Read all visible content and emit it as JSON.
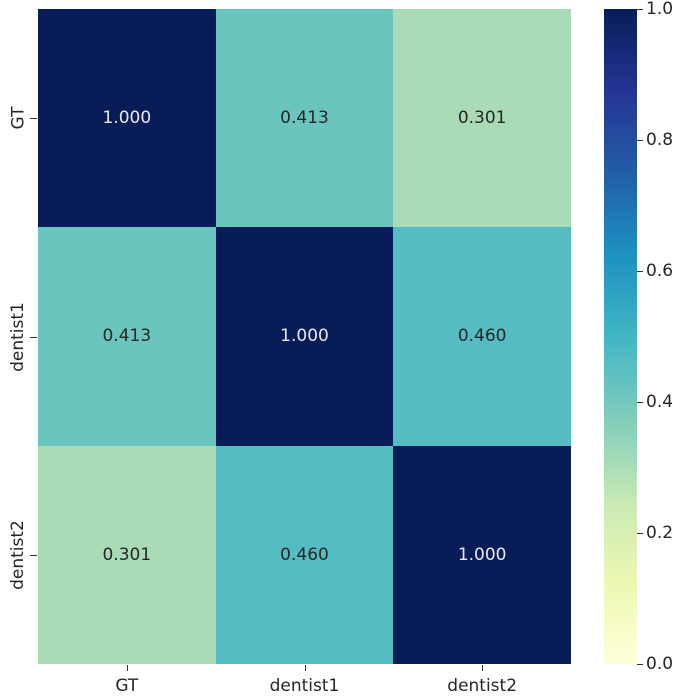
{
  "chart_data": {
    "type": "heatmap",
    "title": "",
    "xlabel": "",
    "ylabel": "",
    "x_categories": [
      "GT",
      "dentist1",
      "dentist2"
    ],
    "y_categories": [
      "GT",
      "dentist1",
      "dentist2"
    ],
    "values": [
      [
        1.0,
        0.413,
        0.301
      ],
      [
        0.413,
        1.0,
        0.46
      ],
      [
        0.301,
        0.46,
        1.0
      ]
    ],
    "annotations": [
      [
        "1.000",
        "0.413",
        "0.301"
      ],
      [
        "0.413",
        "1.000",
        "0.460"
      ],
      [
        "0.301",
        "0.460",
        "1.000"
      ]
    ],
    "colormap": "YlGnBu",
    "colorbar": {
      "range": [
        0.0,
        1.0
      ],
      "ticks": [
        "0.0",
        "0.2",
        "0.4",
        "0.6",
        "0.8",
        "1.0"
      ]
    },
    "cell_colors": [
      [
        "#081d58",
        "#6ac5be",
        "#a9dcb6"
      ],
      [
        "#6ac5be",
        "#081d58",
        "#54bcc2"
      ],
      [
        "#a9dcb6",
        "#54bcc2",
        "#081d58"
      ]
    ],
    "text_colors": [
      [
        "#e8e8f0",
        "#262626",
        "#262626"
      ],
      [
        "#262626",
        "#e8e8f0",
        "#262626"
      ],
      [
        "#262626",
        "#262626",
        "#e8e8f0"
      ]
    ]
  }
}
